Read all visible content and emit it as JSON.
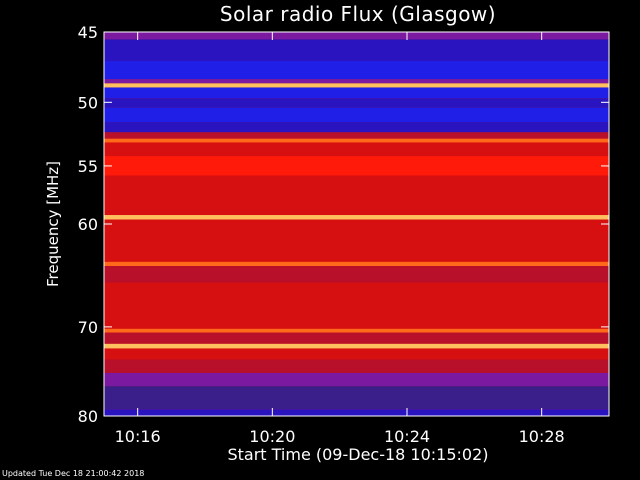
{
  "page": {
    "updated_text": "Updated Tue Dec 18 21:00:42 2018"
  },
  "colors": {
    "background": "#000000",
    "text": "#ffffff",
    "colormap": [
      "#3a1f8a",
      "#2a14c0",
      "#1f1fe8",
      "#7b1aa0",
      "#b80f2a",
      "#d60f10",
      "#ff1a0a",
      "#ff6a1a",
      "#ffc060"
    ]
  },
  "chart_data": {
    "type": "heatmap",
    "title": "Solar radio Flux (Glasgow)",
    "xlabel": "Start Time (09-Dec-18 10:15:02)",
    "ylabel": "Frequency [MHz]",
    "x_tick_labels": [
      "10:16",
      "10:20",
      "10:24",
      "10:28"
    ],
    "x_ticks_minutes": [
      1,
      5,
      9,
      13
    ],
    "xlim_minutes": [
      0,
      15
    ],
    "y_tick_labels": [
      "45",
      "50",
      "55",
      "60",
      "70",
      "80"
    ],
    "y_ticks": [
      45,
      50,
      55,
      60,
      70,
      80
    ],
    "ylim": [
      45,
      80
    ],
    "y_scale": "log",
    "y_direction": "downward",
    "grid": false,
    "frequency_bands": [
      {
        "from": 45.0,
        "to": 45.5,
        "level": 3
      },
      {
        "from": 45.5,
        "to": 47.0,
        "level": 1
      },
      {
        "from": 47.0,
        "to": 48.3,
        "level": 2
      },
      {
        "from": 48.3,
        "to": 48.6,
        "level": 3
      },
      {
        "from": 48.6,
        "to": 48.9,
        "level": 8
      },
      {
        "from": 48.9,
        "to": 49.7,
        "level": 2
      },
      {
        "from": 49.7,
        "to": 50.4,
        "level": 1
      },
      {
        "from": 50.4,
        "to": 51.5,
        "level": 2
      },
      {
        "from": 51.5,
        "to": 52.3,
        "level": 1
      },
      {
        "from": 52.3,
        "to": 52.8,
        "level": 4
      },
      {
        "from": 52.8,
        "to": 53.1,
        "level": 7
      },
      {
        "from": 53.1,
        "to": 54.2,
        "level": 5
      },
      {
        "from": 54.2,
        "to": 55.8,
        "level": 6
      },
      {
        "from": 55.8,
        "to": 59.2,
        "level": 5
      },
      {
        "from": 59.2,
        "to": 59.6,
        "level": 8
      },
      {
        "from": 59.6,
        "to": 63.5,
        "level": 5
      },
      {
        "from": 63.5,
        "to": 63.9,
        "level": 7
      },
      {
        "from": 63.9,
        "to": 65.5,
        "level": 4
      },
      {
        "from": 65.5,
        "to": 70.2,
        "level": 5
      },
      {
        "from": 70.2,
        "to": 70.6,
        "level": 7
      },
      {
        "from": 70.6,
        "to": 71.8,
        "level": 4
      },
      {
        "from": 71.8,
        "to": 72.3,
        "level": 8
      },
      {
        "from": 72.3,
        "to": 73.5,
        "level": 5
      },
      {
        "from": 73.5,
        "to": 75.0,
        "level": 4
      },
      {
        "from": 75.0,
        "to": 76.5,
        "level": 3
      },
      {
        "from": 76.5,
        "to": 79.2,
        "level": 0
      },
      {
        "from": 79.2,
        "to": 80.0,
        "level": 1
      }
    ]
  }
}
